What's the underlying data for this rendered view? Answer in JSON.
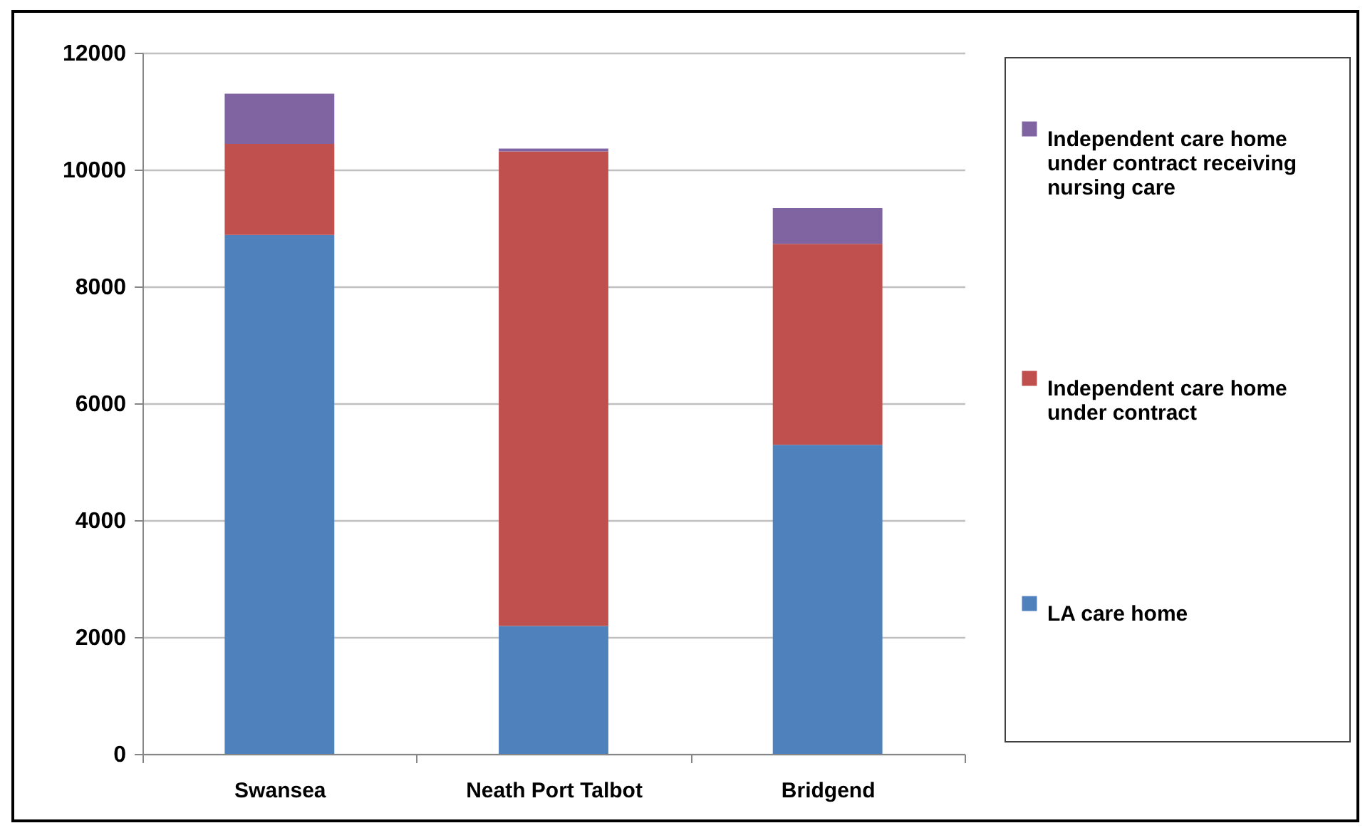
{
  "chart_data": {
    "type": "bar",
    "stacked": true,
    "categories": [
      "Swansea",
      "Neath Port Talbot",
      "Bridgend"
    ],
    "series": [
      {
        "name": "LA care home",
        "color": "#4f81bd",
        "values": [
          8880,
          2190,
          5290
        ]
      },
      {
        "name": "Independent care home under contract",
        "color": "#c0504d",
        "values": [
          1560,
          8120,
          3440
        ]
      },
      {
        "name": "Independent care home under contract receiving nursing care",
        "color": "#8064a2",
        "values": [
          860,
          50,
          610
        ]
      }
    ],
    "ylim": [
      0,
      12000
    ],
    "yticks": [
      0,
      2000,
      4000,
      6000,
      8000,
      10000,
      12000
    ],
    "grid": "y",
    "legend": "right"
  }
}
